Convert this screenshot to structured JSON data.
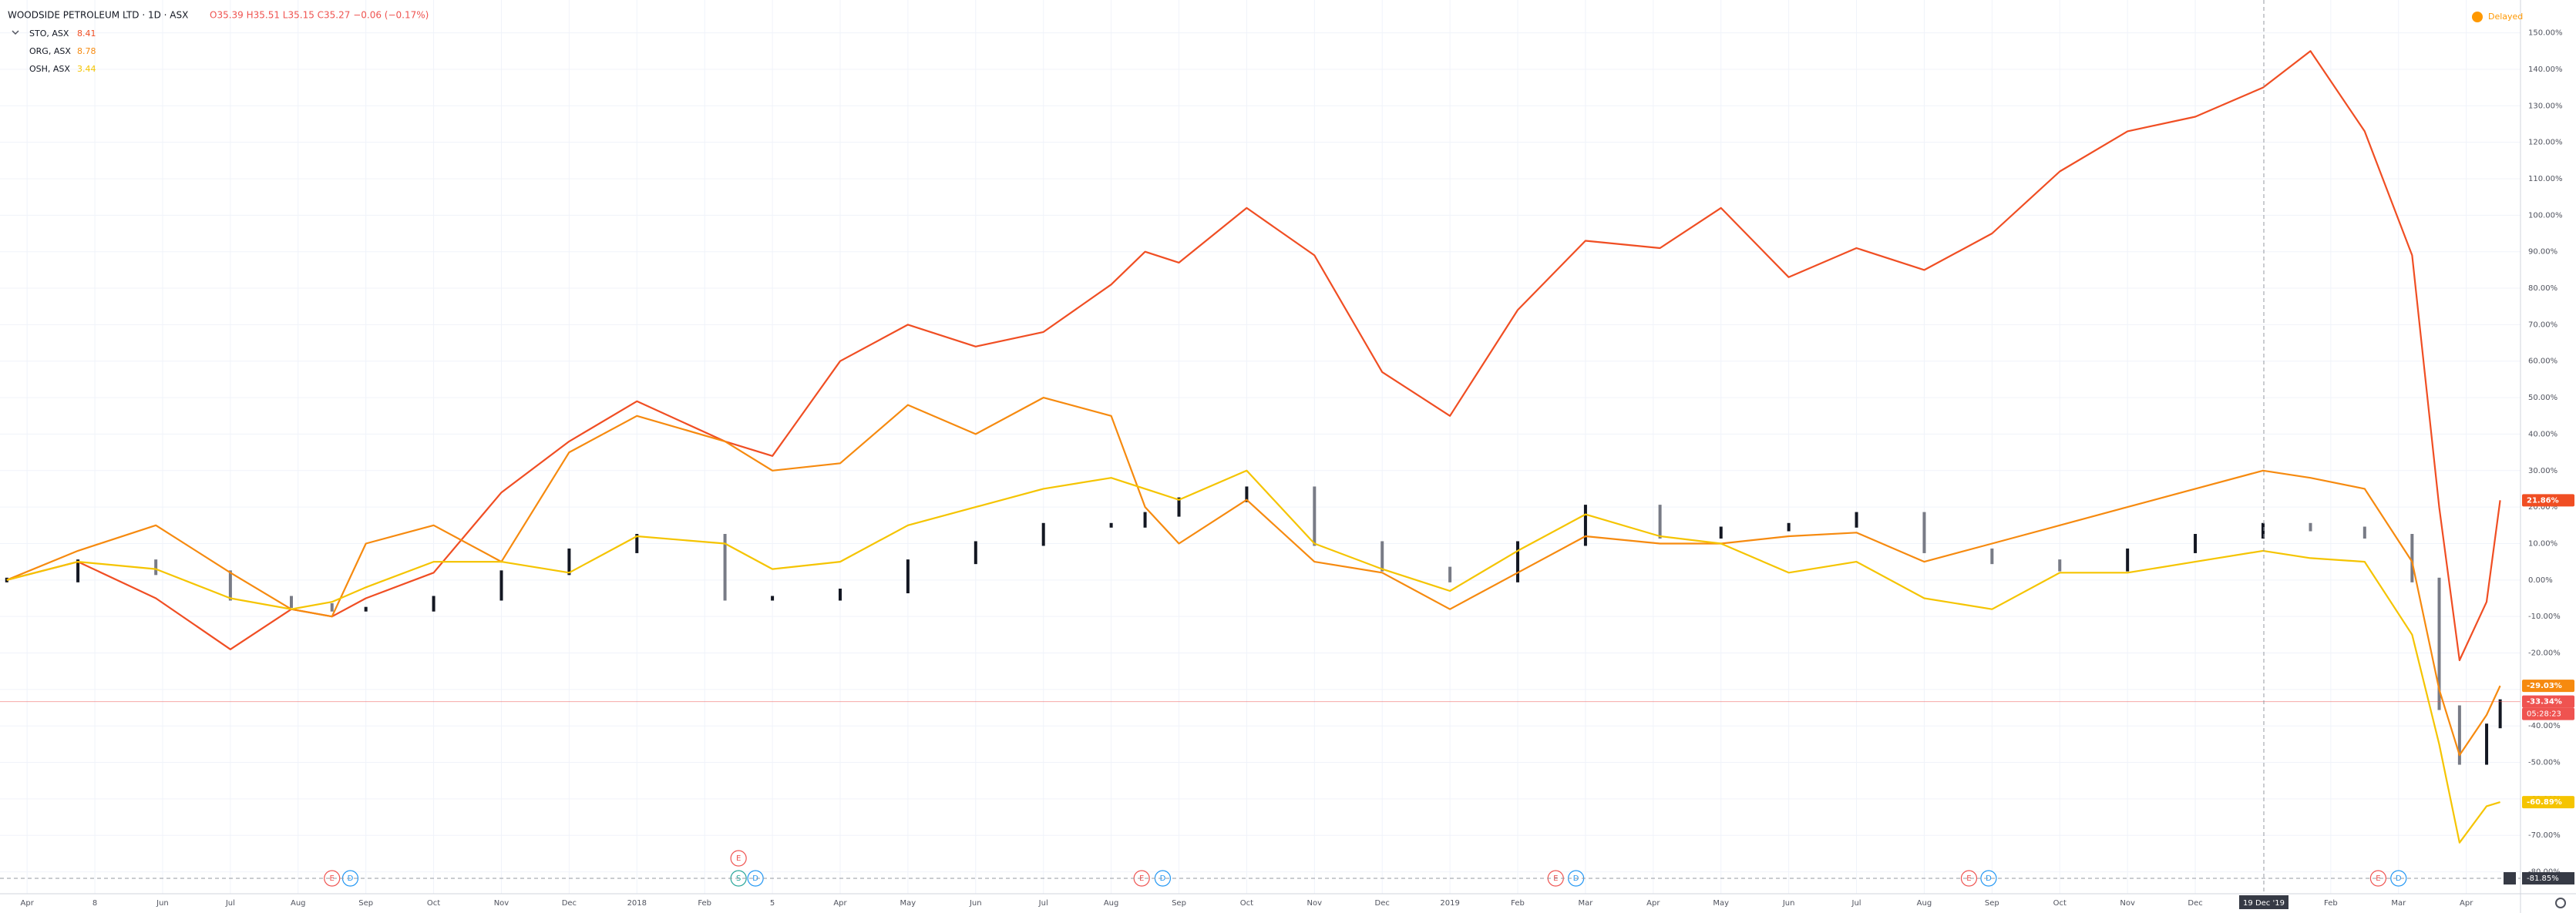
{
  "chart_data": {
    "type": "line",
    "title": "WOODSIDE PETROLEUM LTD · 1D · ASX",
    "ohlc": "O35.39 H35.51 L35.15 C35.27 −0.06 (−0.17%)",
    "status": "Delayed",
    "x": [
      -0.3,
      0.75,
      1.9,
      3,
      3.9,
      4.5,
      5,
      6,
      7,
      8,
      9,
      10.3,
      11,
      12,
      13,
      14,
      15,
      16,
      16.5,
      17,
      18,
      19,
      20,
      21,
      22,
      23,
      24.1,
      25,
      26,
      27,
      28,
      29,
      30,
      31,
      32,
      33,
      33.7,
      34.5,
      35.2,
      35.6,
      35.9,
      36.3,
      36.5
    ],
    "main_series": {
      "color": "#131722",
      "values": [
        0,
        5,
        2,
        -5,
        -7,
        -8,
        -8,
        -5,
        2,
        8,
        12,
        -5,
        -5,
        -3,
        5,
        10,
        15,
        15,
        18,
        22,
        25,
        10,
        3,
        0,
        10,
        20,
        12,
        14,
        15,
        18,
        8,
        5,
        3,
        8,
        12,
        15,
        14,
        12,
        0,
        -35,
        -50,
        -40,
        -33.34
      ],
      "value_labels": [
        null,
        null,
        null,
        null,
        null,
        null,
        null,
        null,
        null,
        null,
        null,
        null,
        null,
        null,
        null,
        null,
        null,
        null,
        null,
        null,
        null,
        null,
        null,
        null,
        null,
        null,
        null,
        null,
        null,
        null,
        null,
        null,
        null,
        null,
        null,
        null,
        null,
        null,
        null,
        null,
        null,
        null,
        "-33.34%"
      ],
      "label_color": "#ef5350",
      "countdown": "05:28:23"
    },
    "series": [
      {
        "name": "STO, ASX",
        "legend_value": 8.41,
        "color": "#f04e23",
        "values": [
          0,
          5,
          -5,
          -19,
          -8,
          -10,
          -5,
          2,
          24,
          38,
          49,
          38,
          34,
          60,
          70,
          64,
          68,
          81,
          90,
          87,
          102,
          89,
          57,
          45,
          74,
          93,
          91,
          102,
          83,
          91,
          85,
          95,
          112,
          123,
          127,
          135,
          145,
          123,
          89,
          20,
          -22,
          -6,
          21.86
        ],
        "value_labels": [
          null,
          null,
          null,
          null,
          null,
          null,
          null,
          null,
          null,
          null,
          null,
          null,
          null,
          null,
          null,
          null,
          null,
          null,
          null,
          null,
          null,
          null,
          null,
          null,
          null,
          null,
          null,
          null,
          null,
          null,
          null,
          null,
          null,
          null,
          null,
          null,
          null,
          null,
          null,
          null,
          null,
          null,
          "21.86%"
        ]
      },
      {
        "name": "ORG, ASX",
        "legend_value": 8.78,
        "color": "#f68a0f",
        "values": [
          0,
          8,
          15,
          2,
          -8,
          -10,
          10,
          15,
          5,
          35,
          45,
          38,
          30,
          32,
          48,
          40,
          50,
          45,
          20,
          10,
          22,
          5,
          2,
          -8,
          2,
          12,
          10,
          10,
          12,
          13,
          5,
          10,
          15,
          20,
          25,
          30,
          28,
          25,
          5,
          -30,
          -48,
          -37,
          -29
        ],
        "value_labels": [
          null,
          null,
          null,
          null,
          null,
          null,
          null,
          null,
          null,
          null,
          null,
          null,
          null,
          null,
          null,
          null,
          null,
          null,
          null,
          null,
          null,
          null,
          null,
          null,
          null,
          null,
          null,
          null,
          null,
          null,
          null,
          null,
          null,
          null,
          null,
          null,
          null,
          null,
          null,
          null,
          null,
          null,
          "-29.03%"
        ]
      },
      {
        "name": "OSH, ASX",
        "legend_value": 3.44,
        "color": "#f5c400",
        "values": [
          0,
          5,
          3,
          -5,
          -8,
          -6,
          -2,
          5,
          5,
          2,
          12,
          10,
          3,
          5,
          15,
          20,
          25,
          28,
          25,
          22,
          30,
          10,
          3,
          -3,
          8,
          18,
          12,
          10,
          2,
          5,
          -5,
          -8,
          2,
          2,
          5,
          8,
          6,
          5,
          -15,
          -45,
          -72,
          -62,
          -60.89
        ],
        "value_labels": [
          null,
          null,
          null,
          null,
          null,
          null,
          null,
          null,
          null,
          null,
          null,
          null,
          null,
          null,
          null,
          null,
          null,
          null,
          null,
          null,
          null,
          null,
          null,
          null,
          null,
          null,
          null,
          null,
          null,
          null,
          null,
          null,
          null,
          null,
          null,
          null,
          null,
          null,
          null,
          null,
          null,
          null,
          "-60.89%"
        ]
      }
    ],
    "xlim": [
      -0.4,
      36.8
    ],
    "xticks": [
      {
        "value": 0,
        "label": "Apr"
      },
      {
        "value": 1,
        "label": "8"
      },
      {
        "value": 2,
        "label": "Jun"
      },
      {
        "value": 3,
        "label": "Jul"
      },
      {
        "value": 4,
        "label": "Aug"
      },
      {
        "value": 5,
        "label": "Sep"
      },
      {
        "value": 6,
        "label": "Oct"
      },
      {
        "value": 7,
        "label": "Nov"
      },
      {
        "value": 8,
        "label": "Dec"
      },
      {
        "value": 9,
        "label": "2018"
      },
      {
        "value": 10,
        "label": "Feb"
      },
      {
        "value": 11,
        "label": "5"
      },
      {
        "value": 12,
        "label": "Apr"
      },
      {
        "value": 13,
        "label": "May"
      },
      {
        "value": 14,
        "label": "Jun"
      },
      {
        "value": 15,
        "label": "Jul"
      },
      {
        "value": 16,
        "label": "Aug"
      },
      {
        "value": 17,
        "label": "Sep"
      },
      {
        "value": 18,
        "label": "Oct"
      },
      {
        "value": 19,
        "label": "Nov"
      },
      {
        "value": 20,
        "label": "Dec"
      },
      {
        "value": 21,
        "label": "2019"
      },
      {
        "value": 22,
        "label": "Feb"
      },
      {
        "value": 23,
        "label": "Mar"
      },
      {
        "value": 24,
        "label": "Apr"
      },
      {
        "value": 25,
        "label": "May"
      },
      {
        "value": 26,
        "label": "Jun"
      },
      {
        "value": 27,
        "label": "Jul"
      },
      {
        "value": 28,
        "label": "Aug"
      },
      {
        "value": 29,
        "label": "Sep"
      },
      {
        "value": 30,
        "label": "Oct"
      },
      {
        "value": 31,
        "label": "Nov"
      },
      {
        "value": 32,
        "label": "Dec"
      },
      {
        "value": 34,
        "label": "Feb"
      },
      {
        "value": 35,
        "label": "Mar"
      },
      {
        "value": 36,
        "label": "Apr"
      }
    ],
    "ylim": [
      -86,
      159
    ],
    "yticks": [
      {
        "value": 150,
        "label": "150.00%"
      },
      {
        "value": 140,
        "label": "140.00%"
      },
      {
        "value": 130,
        "label": "130.00%"
      },
      {
        "value": 120,
        "label": "120.00%"
      },
      {
        "value": 110,
        "label": "110.00%"
      },
      {
        "value": 100,
        "label": "100.00%"
      },
      {
        "value": 90,
        "label": "90.00%"
      },
      {
        "value": 80,
        "label": "80.00%"
      },
      {
        "value": 70,
        "label": "70.00%"
      },
      {
        "value": 60,
        "label": "60.00%"
      },
      {
        "value": 50,
        "label": "50.00%"
      },
      {
        "value": 40,
        "label": "40.00%"
      },
      {
        "value": 30,
        "label": "30.00%"
      },
      {
        "value": 20,
        "label": "20.00%"
      },
      {
        "value": 10,
        "label": "10.00%"
      },
      {
        "value": 0,
        "label": "0.00%"
      },
      {
        "value": -10,
        "label": "-10.00%"
      },
      {
        "value": -20,
        "label": "-20.00%"
      },
      {
        "value": -30,
        "label": "-30.00%"
      },
      {
        "value": -40,
        "label": "-40.00%"
      },
      {
        "value": -50,
        "label": "-50.00%"
      },
      {
        "value": -60,
        "label": "-60.00%"
      },
      {
        "value": -70,
        "label": "-70.00%"
      },
      {
        "value": -80,
        "label": "-80.00%"
      }
    ],
    "grid": true,
    "events": [
      {
        "x": 4.5,
        "label": "E"
      },
      {
        "x": 4.77,
        "label": "D"
      },
      {
        "x": 10.5,
        "label": "S"
      },
      {
        "x": 10.5,
        "label": "E"
      },
      {
        "x": 10.75,
        "label": "D"
      },
      {
        "x": 16.45,
        "label": "E"
      },
      {
        "x": 16.76,
        "label": "D"
      },
      {
        "x": 22.56,
        "label": "E"
      },
      {
        "x": 22.86,
        "label": "D"
      },
      {
        "x": 28.66,
        "label": "E"
      },
      {
        "x": 28.95,
        "label": "D"
      },
      {
        "x": 34.7,
        "label": "E"
      },
      {
        "x": 35.0,
        "label": "D"
      }
    ],
    "crosshair": {
      "x_label": "19 Dec '19",
      "y_label": "-81.85%"
    }
  }
}
